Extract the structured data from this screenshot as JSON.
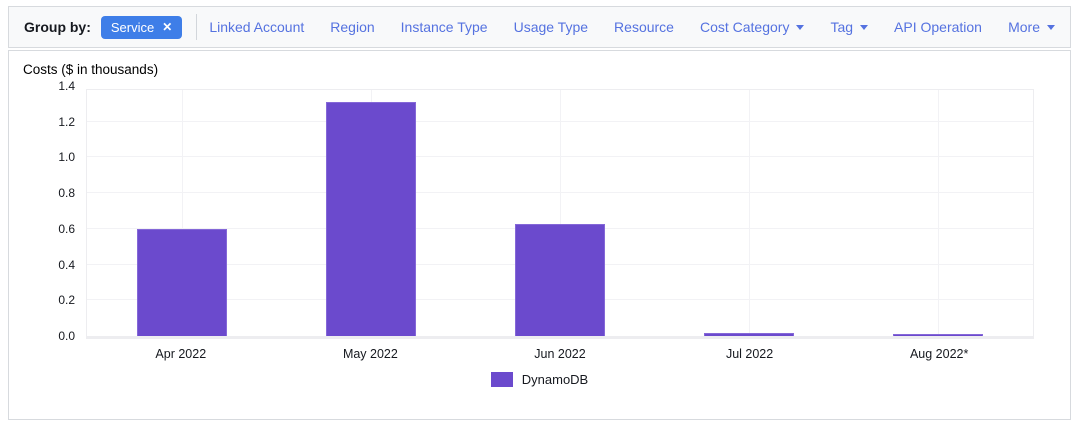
{
  "toolbar": {
    "group_by_label": "Group by:",
    "selected_filter": {
      "label": "Service",
      "remove_icon": "close-x"
    },
    "items": [
      {
        "label": "Linked Account",
        "dropdown": false
      },
      {
        "label": "Region",
        "dropdown": false
      },
      {
        "label": "Instance Type",
        "dropdown": false
      },
      {
        "label": "Usage Type",
        "dropdown": false
      },
      {
        "label": "Resource",
        "dropdown": false
      },
      {
        "label": "Cost Category",
        "dropdown": true
      },
      {
        "label": "Tag",
        "dropdown": true
      },
      {
        "label": "API Operation",
        "dropdown": false
      }
    ],
    "more": {
      "label": "More",
      "dropdown": true
    }
  },
  "chart": {
    "title": "Costs ($ in thousands)"
  },
  "chart_data": {
    "type": "bar",
    "title": "Costs ($ in thousands)",
    "categories": [
      "Apr 2022",
      "May 2022",
      "Jun 2022",
      "Jul 2022",
      "Aug 2022*"
    ],
    "series": [
      {
        "name": "DynamoDB",
        "color": "#6b4acd",
        "values": [
          0.6,
          1.31,
          0.63,
          0.015,
          0.01
        ]
      }
    ],
    "xlabel": "",
    "ylabel": "Costs ($ in thousands)",
    "ylim": [
      0,
      1.4
    ],
    "yticks": [
      0.0,
      0.2,
      0.4,
      0.6,
      0.8,
      1.0,
      1.2,
      1.4
    ],
    "grid": true,
    "legend_position": "bottom-center"
  },
  "colors": {
    "bar": "#6b4acd",
    "bar_edge": "#8568d8",
    "link": "#5572e0",
    "pill_bg": "#3e7ee8",
    "pill_text": "#ffffff",
    "toolbar_bg": "#f8f9fa",
    "panel_border": "#d7dade",
    "gridline": "#f2f2f5",
    "text": "#16191f"
  }
}
